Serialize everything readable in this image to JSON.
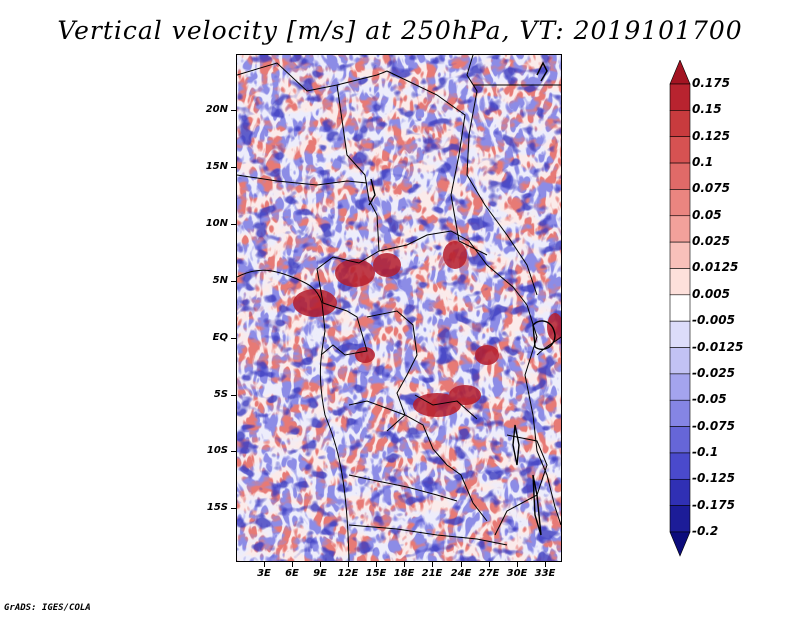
{
  "title": "Vertical velocity [m/s] at 250hPa, VT: 2019101700",
  "credit": "GrADS: IGES/COLA",
  "map": {
    "lat_labels": [
      "20N",
      "15N",
      "10N",
      "5N",
      "EQ",
      "5S",
      "10S",
      "15S"
    ],
    "lon_labels": [
      "3E",
      "6E",
      "9E",
      "12E",
      "15E",
      "18E",
      "21E",
      "24E",
      "27E",
      "30E",
      "33E"
    ],
    "extent": {
      "lon_min": 0,
      "lon_max": 34.5,
      "lat_min": -20,
      "lat_max": 25
    }
  },
  "colorbar": {
    "labels": [
      "0.175",
      "0.15",
      "0.125",
      "0.1",
      "0.075",
      "0.05",
      "0.025",
      "0.0125",
      "0.005",
      "-0.005",
      "-0.0125",
      "-0.025",
      "-0.05",
      "-0.075",
      "-0.1",
      "-0.125",
      "-0.175",
      "-0.2"
    ],
    "colors": [
      "#a31422",
      "#b8232f",
      "#c83b3e",
      "#d65252",
      "#e06a68",
      "#ea8580",
      "#f2a19b",
      "#f8c0ba",
      "#fde0db",
      "#ffffff",
      "#dcdcfa",
      "#c2c2f4",
      "#a4a4ee",
      "#8585e4",
      "#6666d8",
      "#4a4acc",
      "#3030b4",
      "#1c1c98",
      "#0c0c7c"
    ]
  }
}
